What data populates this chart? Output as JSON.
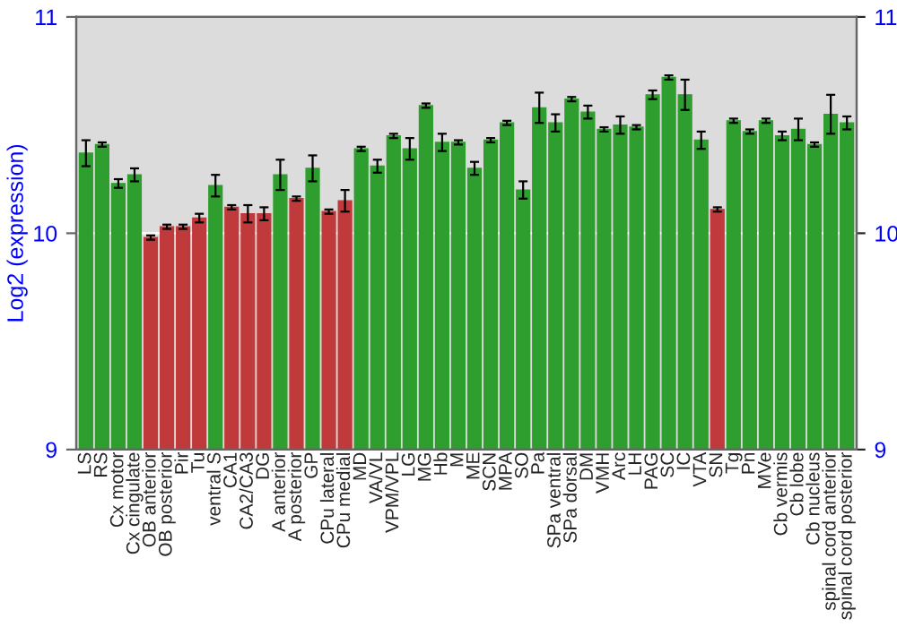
{
  "chart_data": {
    "type": "bar",
    "ylabel": "Log2 (expression)",
    "categories": [
      "LS",
      "RS",
      "Cx motor",
      "Cx cingulate",
      "OB anterior",
      "OB posterior",
      "Pir",
      "Tu",
      "ventral S",
      "CA1",
      "CA2/CA3",
      "DG",
      "A anterior",
      "A posterior",
      "GP",
      "CPu lateral",
      "CPu medial",
      "MD",
      "VA/VL",
      "VPM/VPL",
      "LG",
      "MG",
      "Hb",
      "M",
      "ME",
      "SCN",
      "MPA",
      "SO",
      "Pa",
      "SPa ventral",
      "SPa dorsal",
      "DM",
      "VMH",
      "Arc",
      "LH",
      "PAG",
      "SC",
      "IC",
      "VTA",
      "SN",
      "Tg",
      "Pn",
      "MVe",
      "Cb vermis",
      "Cb lobe",
      "Cb nucleus",
      "spinal cord anterior",
      "spinal cord posterior"
    ],
    "values": [
      10.37,
      10.41,
      10.23,
      10.27,
      9.98,
      10.03,
      10.03,
      10.07,
      10.22,
      10.12,
      10.09,
      10.09,
      10.27,
      10.16,
      10.3,
      10.1,
      10.15,
      10.39,
      10.31,
      10.45,
      10.39,
      10.59,
      10.42,
      10.42,
      10.3,
      10.43,
      10.51,
      10.2,
      10.58,
      10.51,
      10.62,
      10.56,
      10.48,
      10.5,
      10.49,
      10.64,
      10.72,
      10.64,
      10.43,
      10.11,
      10.52,
      10.47,
      10.52,
      10.45,
      10.48,
      10.41,
      10.55,
      10.51
    ],
    "errors": [
      0.06,
      0.01,
      0.02,
      0.03,
      0.01,
      0.01,
      0.01,
      0.02,
      0.05,
      0.01,
      0.04,
      0.03,
      0.07,
      0.01,
      0.06,
      0.01,
      0.05,
      0.01,
      0.03,
      0.01,
      0.05,
      0.01,
      0.04,
      0.01,
      0.03,
      0.01,
      0.01,
      0.04,
      0.07,
      0.04,
      0.01,
      0.03,
      0.01,
      0.04,
      0.01,
      0.02,
      0.01,
      0.07,
      0.04,
      0.01,
      0.01,
      0.01,
      0.01,
      0.02,
      0.05,
      0.01,
      0.09,
      0.03
    ],
    "colors": [
      "#2e9e2e",
      "#2e9e2e",
      "#2e9e2e",
      "#2e9e2e",
      "#c0393b",
      "#c0393b",
      "#c0393b",
      "#c0393b",
      "#2e9e2e",
      "#c0393b",
      "#c0393b",
      "#c0393b",
      "#2e9e2e",
      "#c0393b",
      "#2e9e2e",
      "#c0393b",
      "#c0393b",
      "#2e9e2e",
      "#2e9e2e",
      "#2e9e2e",
      "#2e9e2e",
      "#2e9e2e",
      "#2e9e2e",
      "#2e9e2e",
      "#2e9e2e",
      "#2e9e2e",
      "#2e9e2e",
      "#2e9e2e",
      "#2e9e2e",
      "#2e9e2e",
      "#2e9e2e",
      "#2e9e2e",
      "#2e9e2e",
      "#2e9e2e",
      "#2e9e2e",
      "#2e9e2e",
      "#2e9e2e",
      "#2e9e2e",
      "#2e9e2e",
      "#c0393b",
      "#2e9e2e",
      "#2e9e2e",
      "#2e9e2e",
      "#2e9e2e",
      "#2e9e2e",
      "#2e9e2e",
      "#2e9e2e",
      "#2e9e2e"
    ],
    "ylim": [
      9,
      11
    ],
    "yticks": [
      9,
      10,
      11
    ],
    "y2lim": [
      9,
      11
    ],
    "y2ticks": [
      9,
      10,
      11
    ],
    "grid": "y"
  }
}
